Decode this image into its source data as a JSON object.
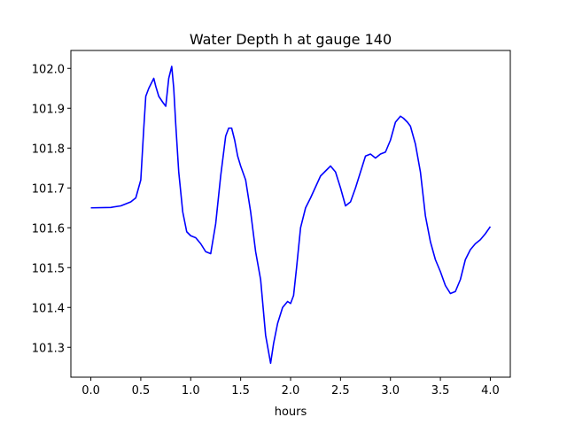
{
  "chart_data": {
    "type": "line",
    "title": "Water Depth h at gauge 140",
    "xlabel": "hours",
    "ylabel": "",
    "xlim": [
      -0.2,
      4.2
    ],
    "ylim": [
      101.225,
      102.045
    ],
    "xticks": [
      "0.0",
      "0.5",
      "1.0",
      "1.5",
      "2.0",
      "2.5",
      "3.0",
      "3.5",
      "4.0"
    ],
    "yticks": [
      "101.3",
      "101.4",
      "101.5",
      "101.6",
      "101.7",
      "101.8",
      "101.9",
      "102.0"
    ],
    "grid": false,
    "series": [
      {
        "color": "#0000ff",
        "x": [
          0.0,
          0.2,
          0.3,
          0.4,
          0.45,
          0.5,
          0.53,
          0.55,
          0.58,
          0.6,
          0.63,
          0.65,
          0.68,
          0.72,
          0.75,
          0.78,
          0.81,
          0.83,
          0.85,
          0.88,
          0.92,
          0.96,
          1.0,
          1.05,
          1.1,
          1.15,
          1.2,
          1.25,
          1.3,
          1.35,
          1.38,
          1.41,
          1.44,
          1.47,
          1.5,
          1.55,
          1.6,
          1.65,
          1.7,
          1.75,
          1.8,
          1.83,
          1.87,
          1.92,
          1.97,
          2.0,
          2.03,
          2.06,
          2.1,
          2.15,
          2.2,
          2.3,
          2.4,
          2.45,
          2.5,
          2.55,
          2.6,
          2.65,
          2.7,
          2.75,
          2.8,
          2.85,
          2.9,
          2.95,
          3.0,
          3.05,
          3.1,
          3.13,
          3.17,
          3.2,
          3.25,
          3.3,
          3.35,
          3.4,
          3.45,
          3.5,
          3.55,
          3.6,
          3.65,
          3.7,
          3.75,
          3.8,
          3.85,
          3.9,
          3.95,
          4.0
        ],
        "y": [
          101.65,
          101.651,
          101.655,
          101.665,
          101.675,
          101.72,
          101.85,
          101.93,
          101.95,
          101.96,
          101.975,
          101.955,
          101.93,
          101.915,
          101.905,
          101.975,
          102.005,
          101.95,
          101.86,
          101.74,
          101.64,
          101.59,
          101.58,
          101.575,
          101.56,
          101.54,
          101.535,
          101.61,
          101.73,
          101.83,
          101.85,
          101.85,
          101.82,
          101.78,
          101.755,
          101.72,
          101.64,
          101.54,
          101.47,
          101.33,
          101.26,
          101.31,
          101.36,
          101.4,
          101.415,
          101.41,
          101.43,
          101.5,
          101.6,
          101.65,
          101.675,
          101.73,
          101.755,
          101.74,
          101.7,
          101.655,
          101.665,
          101.7,
          101.74,
          101.78,
          101.785,
          101.775,
          101.785,
          101.79,
          101.82,
          101.865,
          101.88,
          101.875,
          101.865,
          101.855,
          101.81,
          101.74,
          101.63,
          101.565,
          101.52,
          101.49,
          101.455,
          101.435,
          101.44,
          101.47,
          101.52,
          101.545,
          101.56,
          101.57,
          101.585,
          101.603
        ]
      }
    ]
  }
}
